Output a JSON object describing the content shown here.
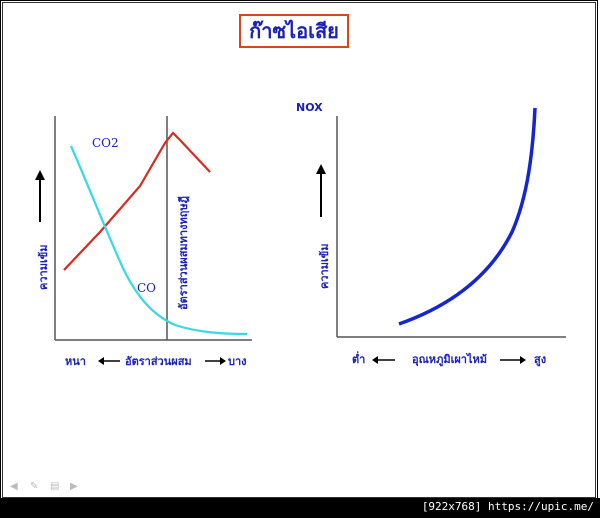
{
  "title": "ก๊าซไอเสีย",
  "left_chart": {
    "ylabel": "ความเข้ม",
    "co2_label": "CO2",
    "co_label": "CO",
    "vertical_label": "อัตราส่วนผสมทางทฤษฎี",
    "x_left": "หนา",
    "x_center": "อัตราส่วนผสม",
    "x_right": "บาง",
    "colors": {
      "co2": "#d62b1f",
      "co": "#38d9e6",
      "text": "#1a21b8"
    }
  },
  "right_chart": {
    "series_label": "NOX",
    "ylabel": "ความเข้ม",
    "x_left": "ต่ำ",
    "x_center": "อุณหภูมิเผาไหม้",
    "x_right": "สูง",
    "colors": {
      "nox": "#1525d1"
    }
  },
  "watermark": "[922x768] https://upic.me/",
  "controls": {
    "prev_icon": "arrow-left-icon",
    "pen_icon": "pen-icon",
    "menu_icon": "menu-icon",
    "next_icon": "arrow-right-icon"
  }
}
